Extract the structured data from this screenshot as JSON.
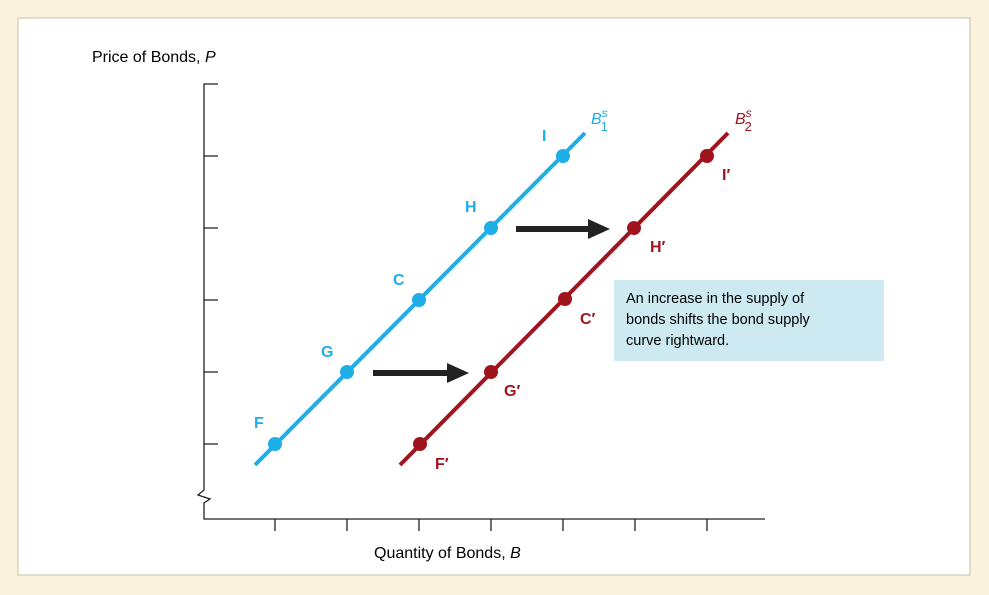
{
  "y_axis": {
    "label": "Price of Bonds, ",
    "symbol": "P"
  },
  "x_axis": {
    "label": "Quantity of Bonds, ",
    "symbol": "B"
  },
  "curves": [
    {
      "name": "B",
      "superscript": "s",
      "subscript": "1",
      "points": [
        "F",
        "G",
        "C",
        "H",
        "I"
      ]
    },
    {
      "name": "B",
      "superscript": "s",
      "subscript": "2",
      "points": [
        "F′",
        "G′",
        "C′",
        "H′",
        "I′"
      ]
    }
  ],
  "annotation": [
    "An increase in the supply of",
    "bonds shifts the bond supply",
    "curve rightward."
  ]
}
